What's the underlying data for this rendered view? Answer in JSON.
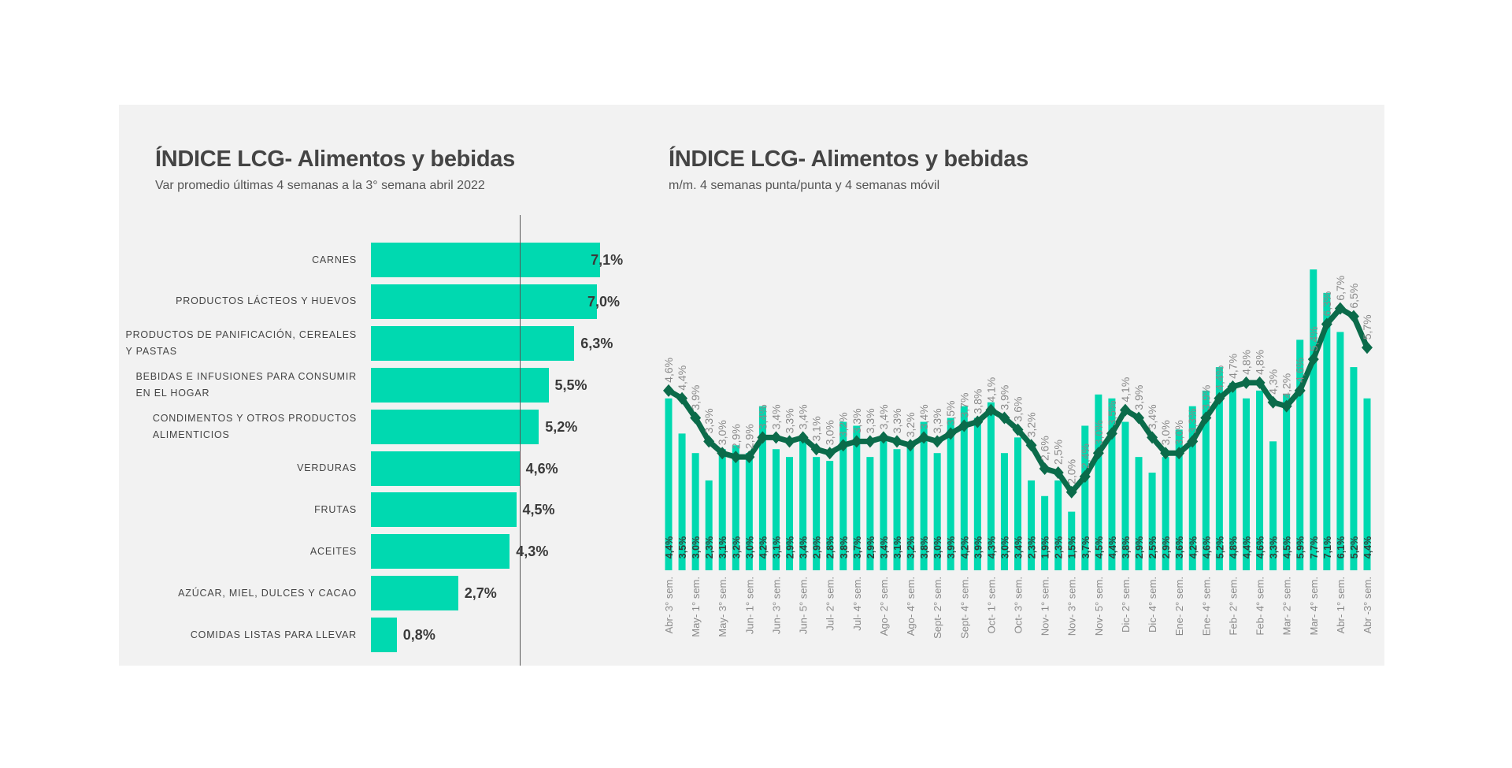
{
  "chart_data": [
    {
      "type": "bar",
      "orientation": "horizontal",
      "title": "ÍNDICE LCG- Alimentos y bebidas",
      "subtitle": "Var promedio últimas 4 semanas a la 3° semana abril 2022",
      "categories": [
        [
          "CARNES"
        ],
        [
          "PRODUCTOS LÁCTEOS Y HUEVOS"
        ],
        [
          "PRODUCTOS DE PANIFICACIÓN, CEREALES",
          "Y PASTAS"
        ],
        [
          "BEBIDAS E INFUSIONES PARA CONSUMIR",
          "EN EL HOGAR"
        ],
        [
          "CONDIMENTOS Y OTROS PRODUCTOS",
          "ALIMENTICIOS"
        ],
        [
          "VERDURAS"
        ],
        [
          "FRUTAS"
        ],
        [
          "ACEITES"
        ],
        [
          "AZÚCAR, MIEL, DULCES Y CACAO"
        ],
        [
          "COMIDAS LISTAS PARA LLEVAR"
        ]
      ],
      "values": [
        7.1,
        7.0,
        6.3,
        5.5,
        5.2,
        4.6,
        4.5,
        4.3,
        2.7,
        0.8
      ],
      "value_labels": [
        "7,1%",
        "7,0%",
        "6,3%",
        "5,5%",
        "5,2%",
        "4,6%",
        "4,5%",
        "4,3%",
        "2,7%",
        "0,8%"
      ],
      "reference_line": 4.6,
      "bar_color": "#00d9b0"
    },
    {
      "type": "bar+line",
      "title": "ÍNDICE LCG- Alimentos y bebidas",
      "subtitle": "m/m. 4 semanas punta/punta y 4 semanas móvil",
      "x_tick_labels": [
        "Abr- 3° sem.",
        "May- 1° sem.",
        "May- 3° sem.",
        "Jun- 1° sem.",
        "Jun- 3° sem.",
        "Jun- 5° sem.",
        "Jul- 2° sem.",
        "Jul- 4° sem.",
        "Ago- 2° sem.",
        "Ago- 4° sem.",
        "Sept- 2° sem.",
        "Sept- 4° sem.",
        "Oct- 1° sem.",
        "Oct- 3° sem.",
        "Nov- 1° sem.",
        "Nov- 3° sem.",
        "Nov- 5° sem.",
        "Dic- 2° sem.",
        "Dic- 4° sem.",
        "Ene- 2° sem.",
        "Ene- 4° sem.",
        "Feb- 2° sem.",
        "Feb- 4° sem.",
        "Mar- 2° sem.",
        "Mar- 4° sem.",
        "Abr- 1° sem.",
        "Abr -3° sem."
      ],
      "series": [
        {
          "type": "bar",
          "color": "#00d9b0",
          "values": [
            4.4,
            3.5,
            3.0,
            2.3,
            3.1,
            3.2,
            3.0,
            4.2,
            3.1,
            2.9,
            3.4,
            2.9,
            2.8,
            3.8,
            3.7,
            2.9,
            3.4,
            3.1,
            3.2,
            3.8,
            3.0,
            3.9,
            4.2,
            3.9,
            4.3,
            3.0,
            3.4,
            2.3,
            1.9,
            2.3,
            1.5,
            3.7,
            4.5,
            4.4,
            3.8,
            2.9,
            2.5,
            2.9,
            3.6,
            4.2,
            4.6,
            5.2,
            4.8,
            4.4,
            4.6,
            3.3,
            4.5,
            5.9,
            7.7,
            7.1,
            6.1,
            5.2,
            4.4
          ]
        },
        {
          "type": "line",
          "color": "#0b6b4a",
          "marker": "diamond",
          "values": [
            4.6,
            4.4,
            3.9,
            3.3,
            3.0,
            2.9,
            2.9,
            3.4,
            3.4,
            3.3,
            3.4,
            3.1,
            3.0,
            3.2,
            3.3,
            3.3,
            3.4,
            3.3,
            3.2,
            3.4,
            3.3,
            3.5,
            3.7,
            3.8,
            4.1,
            3.9,
            3.6,
            3.2,
            2.6,
            2.5,
            2.0,
            2.4,
            3.0,
            3.5,
            4.1,
            3.9,
            3.4,
            3.0,
            3.0,
            3.3,
            3.9,
            4.4,
            4.7,
            4.8,
            4.8,
            4.3,
            4.2,
            4.6,
            5.4,
            6.3,
            6.7,
            6.5,
            5.7
          ]
        }
      ],
      "x_tick_every": 2,
      "ylim": [
        0,
        8
      ]
    }
  ]
}
